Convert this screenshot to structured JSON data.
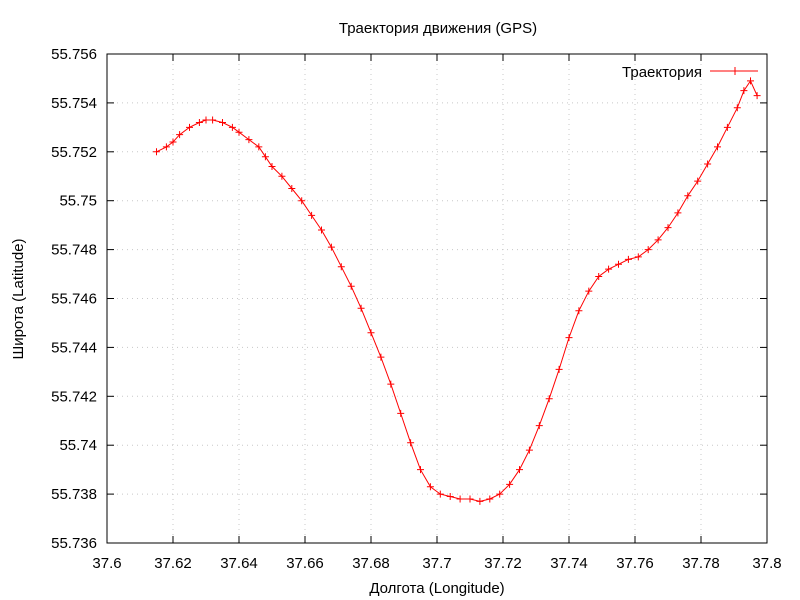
{
  "chart_data": {
    "type": "line",
    "title": "Траектория движения (GPS)",
    "xlabel": "Долгота (Longitude)",
    "ylabel": "Широта (Latitude)",
    "xlim": [
      37.6,
      37.8
    ],
    "ylim": [
      55.736,
      55.756
    ],
    "xticks": [
      "37.6",
      "37.62",
      "37.64",
      "37.66",
      "37.68",
      "37.7",
      "37.72",
      "37.74",
      "37.76",
      "37.78",
      "37.8"
    ],
    "yticks": [
      "55.736",
      "55.738",
      "55.74",
      "55.742",
      "55.744",
      "55.746",
      "55.748",
      "55.75",
      "55.752",
      "55.754",
      "55.756"
    ],
    "grid": true,
    "legend_position": "top-right",
    "series": [
      {
        "name": "Траектория",
        "color": "#ff0000",
        "marker": "plus",
        "x": [
          37.615,
          37.618,
          37.62,
          37.622,
          37.625,
          37.628,
          37.63,
          37.632,
          37.635,
          37.638,
          37.64,
          37.643,
          37.646,
          37.648,
          37.65,
          37.653,
          37.656,
          37.659,
          37.662,
          37.665,
          37.668,
          37.671,
          37.674,
          37.677,
          37.68,
          37.683,
          37.686,
          37.689,
          37.692,
          37.695,
          37.698,
          37.701,
          37.704,
          37.707,
          37.71,
          37.713,
          37.716,
          37.719,
          37.722,
          37.725,
          37.728,
          37.731,
          37.734,
          37.737,
          37.74,
          37.743,
          37.746,
          37.749,
          37.752,
          37.755,
          37.758,
          37.761,
          37.764,
          37.767,
          37.77,
          37.773,
          37.776,
          37.779,
          37.782,
          37.785,
          37.788,
          37.791,
          37.793,
          37.795,
          37.797
        ],
        "y": [
          55.752,
          55.7522,
          55.7524,
          55.7527,
          55.753,
          55.7532,
          55.7533,
          55.7533,
          55.7532,
          55.753,
          55.7528,
          55.7525,
          55.7522,
          55.7518,
          55.7514,
          55.751,
          55.7505,
          55.75,
          55.7494,
          55.7488,
          55.7481,
          55.7473,
          55.7465,
          55.7456,
          55.7446,
          55.7436,
          55.7425,
          55.7413,
          55.7401,
          55.739,
          55.7383,
          55.738,
          55.7379,
          55.7378,
          55.7378,
          55.7377,
          55.7378,
          55.738,
          55.7384,
          55.739,
          55.7398,
          55.7408,
          55.7419,
          55.7431,
          55.7444,
          55.7455,
          55.7463,
          55.7469,
          55.7472,
          55.7474,
          55.7476,
          55.7477,
          55.748,
          55.7484,
          55.7489,
          55.7495,
          55.7502,
          55.7508,
          55.7515,
          55.7522,
          55.753,
          55.7538,
          55.7545,
          55.7549,
          55.7543
        ]
      }
    ]
  }
}
